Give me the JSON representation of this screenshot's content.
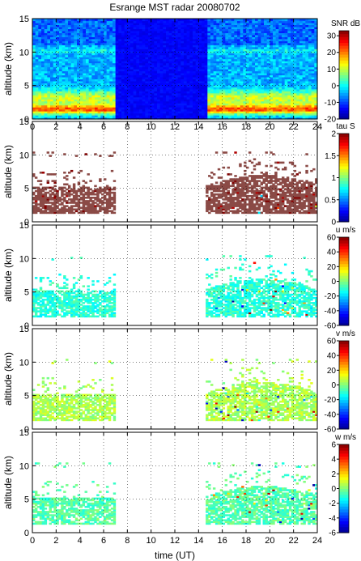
{
  "title": "Esrange MST radar 20080702",
  "colors": {
    "jet": [
      "#00008f",
      "#0000ff",
      "#0080ff",
      "#00ffff",
      "#80ff80",
      "#ffff00",
      "#ff8000",
      "#ff0000",
      "#800000"
    ],
    "paper": "#ffffff",
    "layer": "#8b4a46"
  },
  "chart_data": [
    {
      "type": "heatmap",
      "panel": 0,
      "ylabel": "altitude (km)",
      "colorbar_label": "SNR dB",
      "colorbar_ticks": [
        "30",
        "20",
        "10",
        "0",
        "-10",
        "-20"
      ],
      "clim": [
        -20,
        33
      ],
      "x": {
        "range": [
          0,
          24
        ],
        "ticks": [
          "0",
          "2",
          "4",
          "6",
          "8",
          "10",
          "12",
          "14",
          "16",
          "18",
          "20",
          "22",
          "24"
        ]
      },
      "y": {
        "range": [
          0,
          15
        ],
        "ticks": [
          "0",
          "5",
          "10",
          "15"
        ]
      },
      "grid": true,
      "data_gap_hours": [
        7,
        14.7
      ],
      "layers_km": [
        {
          "alt": 1.5,
          "value": 25
        },
        {
          "alt": 3.2,
          "value": 15
        },
        {
          "alt": 10.2,
          "value": 5
        }
      ]
    },
    {
      "type": "heatmap",
      "panel": 1,
      "ylabel": "altitude (km)",
      "colorbar_label": "tau S",
      "colorbar_ticks": [
        "2",
        "1.5",
        "1",
        "0.5",
        "0"
      ],
      "clim": [
        0,
        2
      ],
      "x": {
        "range": [
          0,
          24
        ]
      },
      "y": {
        "range": [
          0,
          15
        ],
        "ticks": [
          "0",
          "5",
          "10",
          "15"
        ]
      },
      "grid": true,
      "data_gap_hours": [
        7,
        14.7
      ],
      "typical_value": 2.0
    },
    {
      "type": "heatmap",
      "panel": 2,
      "ylabel": "altitude (km)",
      "colorbar_label": "u m/s",
      "colorbar_ticks": [
        "60",
        "40",
        "20",
        "0",
        "-20",
        "-40",
        "-60"
      ],
      "clim": [
        -60,
        60
      ],
      "x": {
        "range": [
          0,
          24
        ]
      },
      "y": {
        "range": [
          0,
          15
        ],
        "ticks": [
          "0",
          "5",
          "10",
          "15"
        ]
      },
      "grid": true,
      "data_gap_hours": [
        7,
        14.7
      ],
      "typical_value": -10
    },
    {
      "type": "heatmap",
      "panel": 3,
      "ylabel": "altitude (km)",
      "colorbar_label": "v m/s",
      "colorbar_ticks": [
        "60",
        "40",
        "20",
        "0",
        "-20",
        "-40",
        "-60"
      ],
      "clim": [
        -60,
        60
      ],
      "x": {
        "range": [
          0,
          24
        ]
      },
      "y": {
        "range": [
          0,
          15
        ],
        "ticks": [
          "0",
          "5",
          "10",
          "15"
        ]
      },
      "grid": true,
      "data_gap_hours": [
        7,
        14.7
      ],
      "typical_value": 5
    },
    {
      "type": "heatmap",
      "panel": 4,
      "ylabel": "altitude (km)",
      "xlabel": "time (UT)",
      "colorbar_label": "w m/s",
      "colorbar_ticks": [
        "6",
        "4",
        "2",
        "0",
        "-2",
        "-4",
        "-6"
      ],
      "clim": [
        -6,
        6
      ],
      "x": {
        "range": [
          0,
          24
        ],
        "ticks": [
          "0",
          "2",
          "4",
          "6",
          "8",
          "10",
          "12",
          "14",
          "16",
          "18",
          "20",
          "22",
          "24"
        ]
      },
      "y": {
        "range": [
          0,
          15
        ],
        "ticks": [
          "0",
          "5",
          "10",
          "15"
        ]
      },
      "grid": true,
      "data_gap_hours": [
        7,
        14.7
      ],
      "typical_value": -0.5
    }
  ]
}
